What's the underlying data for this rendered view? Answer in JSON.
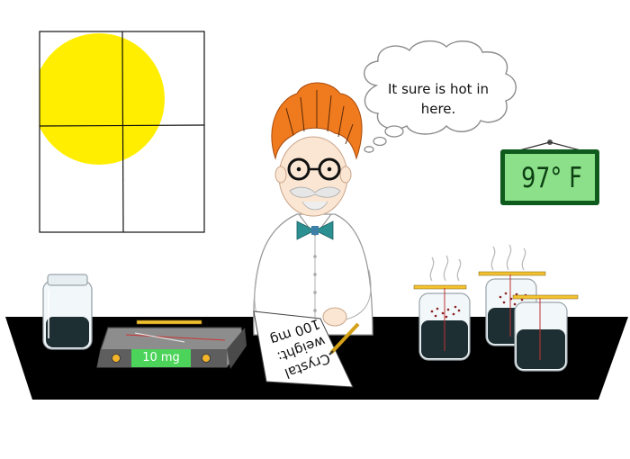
{
  "speech_bubble": {
    "text": "It sure is hot in here."
  },
  "thermometer": {
    "reading": "97° F"
  },
  "scale": {
    "display": "10 mg"
  },
  "note": {
    "line1": "Crystal",
    "line2": "weight:",
    "line3": "100 mg"
  },
  "colors": {
    "sun": "#ffee00",
    "table": "#000000",
    "thermometer_screen": "#8de08a",
    "thermometer_frame": "#0f5a1d",
    "scale_display": "#4bd35a",
    "hair": "#f07a1e",
    "bowtie": "#2c8f91",
    "crystals": "#8a1f22",
    "pencil": "#f2c230"
  },
  "icons": [
    "sun-icon",
    "window-icon",
    "jar-icon",
    "scale-icon",
    "pencil-icon",
    "thermometer-icon",
    "scientist-icon",
    "thought-bubble-icon",
    "crystal-jar-icon"
  ]
}
